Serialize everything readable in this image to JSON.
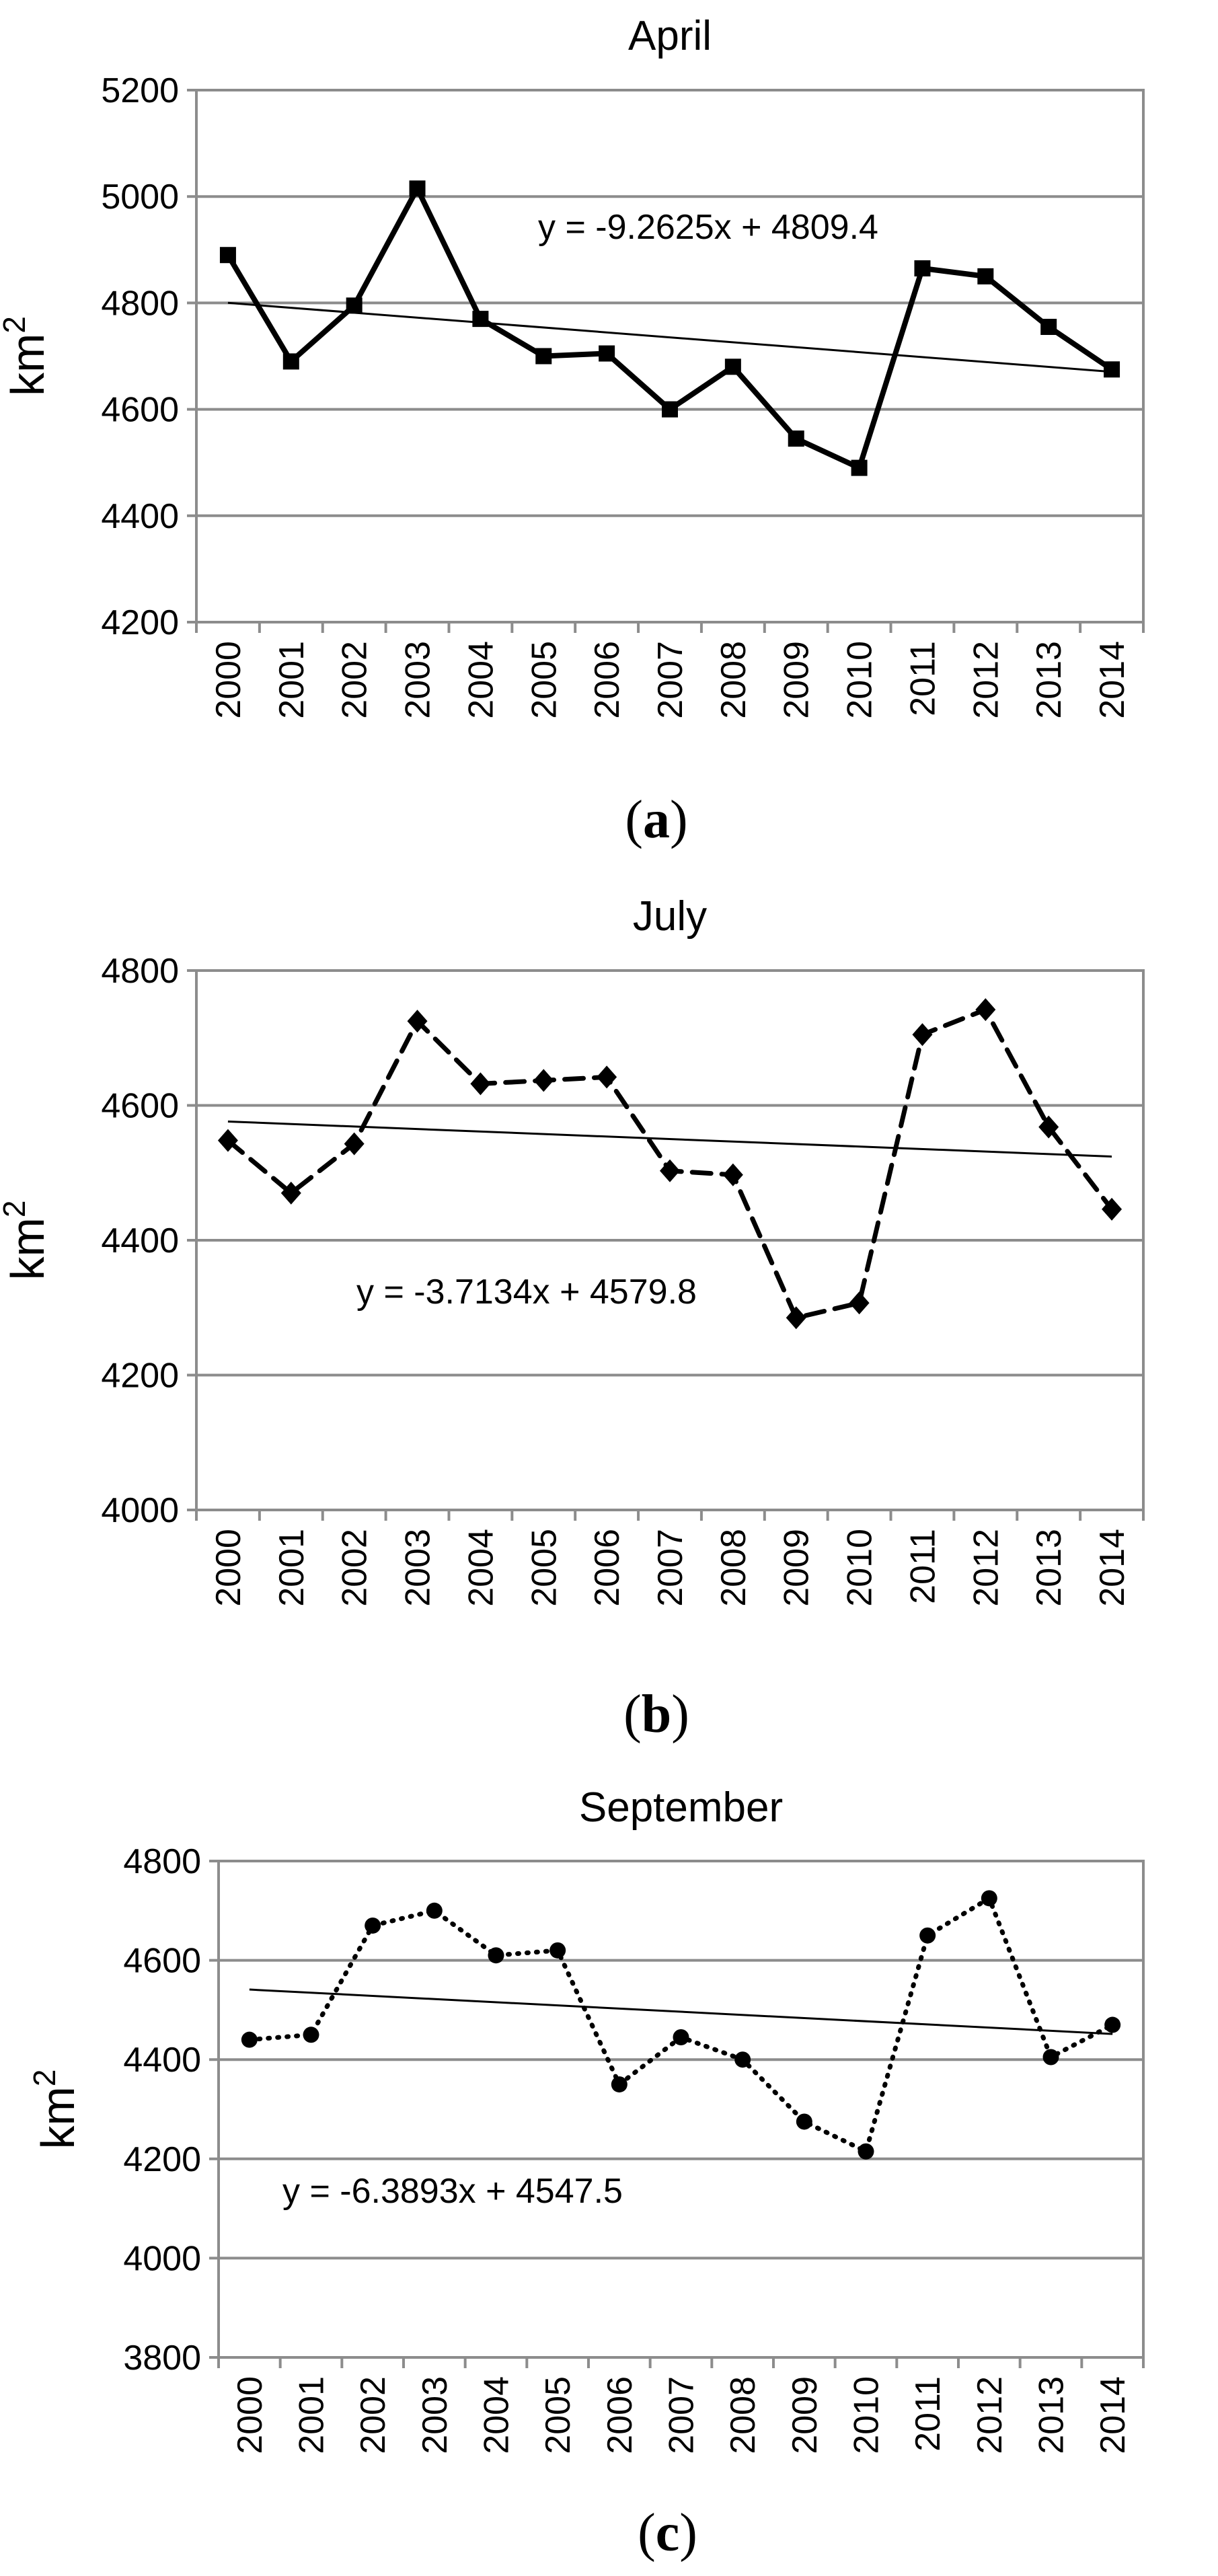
{
  "chart_data": [
    {
      "type": "line",
      "title": "April",
      "ylabel": "km",
      "ylabel_sup": "2",
      "panel_label": "a",
      "ylim": [
        4200,
        5200
      ],
      "yticks": [
        4200,
        4400,
        4600,
        4800,
        5000,
        5200
      ],
      "grid": true,
      "categories": [
        "2000",
        "2001",
        "2002",
        "2003",
        "2004",
        "2005",
        "2006",
        "2007",
        "2008",
        "2009",
        "2010",
        "2011",
        "2012",
        "2013",
        "2014"
      ],
      "series": [
        {
          "values": [
            4890,
            4690,
            4795,
            5015,
            4770,
            4700,
            4705,
            4600,
            4680,
            4545,
            4490,
            4865,
            4850,
            4755,
            4675
          ],
          "line_style": "solid",
          "marker": "square",
          "color": "#000000"
        }
      ],
      "trendline": {
        "equation": "y = -9.2625x + 4809.4",
        "slope": -9.2625,
        "intercept": 4809.4
      }
    },
    {
      "type": "line",
      "title": "July",
      "ylabel": "km",
      "ylabel_sup": "2",
      "panel_label": "b",
      "ylim": [
        4000,
        4800
      ],
      "yticks": [
        4000,
        4200,
        4400,
        4600,
        4800
      ],
      "grid": true,
      "categories": [
        "2000",
        "2001",
        "2002",
        "2003",
        "2004",
        "2005",
        "2006",
        "2007",
        "2008",
        "2009",
        "2010",
        "2011",
        "2012",
        "2013",
        "2014"
      ],
      "series": [
        {
          "values": [
            4548,
            4470,
            4543,
            4725,
            4632,
            4637,
            4642,
            4503,
            4497,
            4285,
            4307,
            4705,
            4742,
            4568,
            4446
          ],
          "line_style": "dashed",
          "marker": "diamond",
          "color": "#000000"
        }
      ],
      "trendline": {
        "equation": "y = -3.7134x + 4579.8",
        "slope": -3.7134,
        "intercept": 4579.8
      }
    },
    {
      "type": "line",
      "title": "September",
      "ylabel": "km",
      "ylabel_sup": "2",
      "panel_label": "c",
      "ylim": [
        3800,
        4800
      ],
      "yticks": [
        3800,
        4000,
        4200,
        4400,
        4600,
        4800
      ],
      "grid": true,
      "categories": [
        "2000",
        "2001",
        "2002",
        "2003",
        "2004",
        "2005",
        "2006",
        "2007",
        "2008",
        "2009",
        "2010",
        "2011",
        "2012",
        "2013",
        "2014"
      ],
      "series": [
        {
          "values": [
            4440,
            4450,
            4670,
            4700,
            4610,
            4620,
            4350,
            4445,
            4400,
            4275,
            4215,
            4650,
            4725,
            4405,
            4470
          ],
          "line_style": "dotted",
          "marker": "circle",
          "color": "#000000"
        }
      ],
      "trendline": {
        "equation": "y = -6.3893x + 4547.5",
        "slope": -6.3893,
        "intercept": 4547.5
      }
    }
  ]
}
